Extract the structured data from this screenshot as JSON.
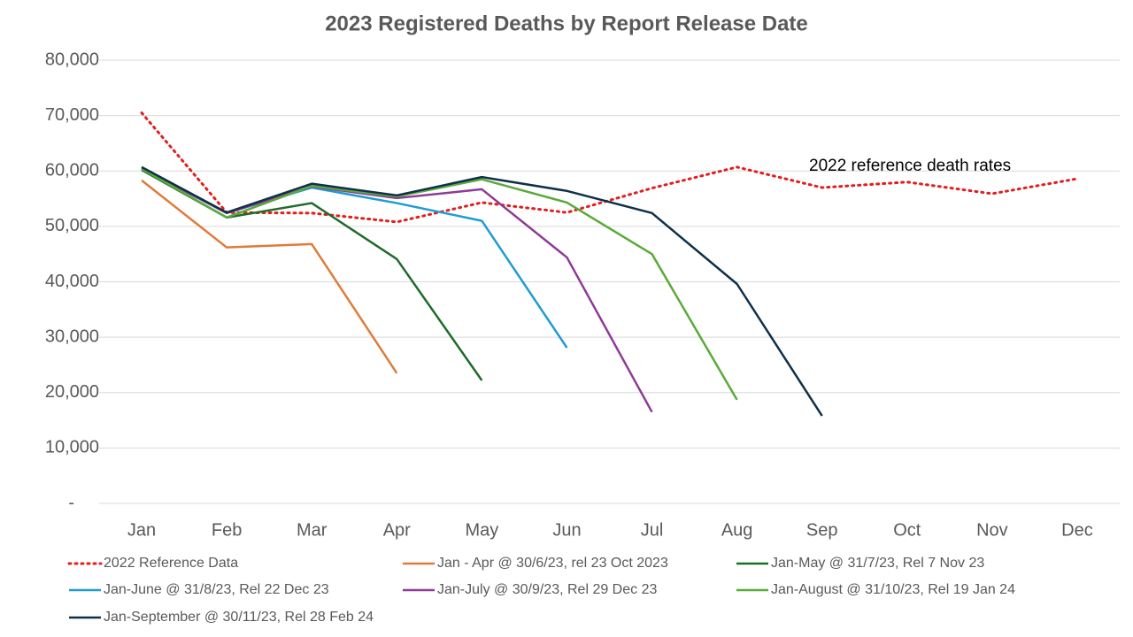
{
  "chart_data": {
    "type": "line",
    "title": "2023 Registered Deaths by Report Release Date",
    "annotation": "2022 reference death rates",
    "categories": [
      "Jan",
      "Feb",
      "Mar",
      "Apr",
      "May",
      "Jun",
      "Jul",
      "Aug",
      "Sep",
      "Oct",
      "Nov",
      "Dec"
    ],
    "ylim": [
      0,
      80000
    ],
    "yticks": [
      {
        "value": 0,
        "label": "-"
      },
      {
        "value": 10000,
        "label": "10,000"
      },
      {
        "value": 20000,
        "label": "20,000"
      },
      {
        "value": 30000,
        "label": "30,000"
      },
      {
        "value": 40000,
        "label": "40,000"
      },
      {
        "value": 50000,
        "label": "50,000"
      },
      {
        "value": 60000,
        "label": "60,000"
      },
      {
        "value": 70000,
        "label": "70,000"
      },
      {
        "value": 80000,
        "label": "80,000"
      }
    ],
    "grid": true,
    "legend": "bottom",
    "series": [
      {
        "name": "2022 Reference Data",
        "color": "#e02020",
        "line_style": "dotted",
        "values": [
          70500,
          52500,
          52400,
          50800,
          54300,
          52500,
          56900,
          60700,
          57000,
          58000,
          55900,
          58600
        ]
      },
      {
        "name": "Jan - Apr @ 30/6/23, rel 23 Oct 2023",
        "color": "#e07b39",
        "values": [
          58300,
          46200,
          46800,
          23500,
          null,
          null,
          null,
          null,
          null,
          null,
          null,
          null
        ]
      },
      {
        "name": "Jan-May @ 31/7/23, Rel 7 Nov 23",
        "color": "#1e6b2a",
        "values": [
          60200,
          51600,
          54200,
          44100,
          22200,
          null,
          null,
          null,
          null,
          null,
          null,
          null
        ]
      },
      {
        "name": "Jan-June @ 31/8/23, Rel 22 Dec 23",
        "color": "#1f9bd6",
        "values": [
          60500,
          52400,
          57000,
          54200,
          51000,
          28100,
          null,
          null,
          null,
          null,
          null,
          null
        ]
      },
      {
        "name": "Jan-July @ 30/9/23, Rel 29 Dec 23",
        "color": "#8e3a96",
        "values": [
          60500,
          52400,
          57200,
          55100,
          56700,
          44400,
          16500,
          null,
          null,
          null,
          null,
          null
        ]
      },
      {
        "name": "Jan-August @ 31/10/23, Rel 19 Jan 24",
        "color": "#5aaa3a",
        "values": [
          60400,
          51600,
          57300,
          55400,
          58500,
          54300,
          45000,
          18700,
          null,
          null,
          null,
          null
        ]
      },
      {
        "name": "Jan-September @ 30/11/23, Rel 28 Feb 24",
        "color": "#0f3048",
        "values": [
          60700,
          52500,
          57700,
          55600,
          58900,
          56400,
          52400,
          39600,
          15800,
          null,
          null,
          null
        ]
      }
    ]
  }
}
